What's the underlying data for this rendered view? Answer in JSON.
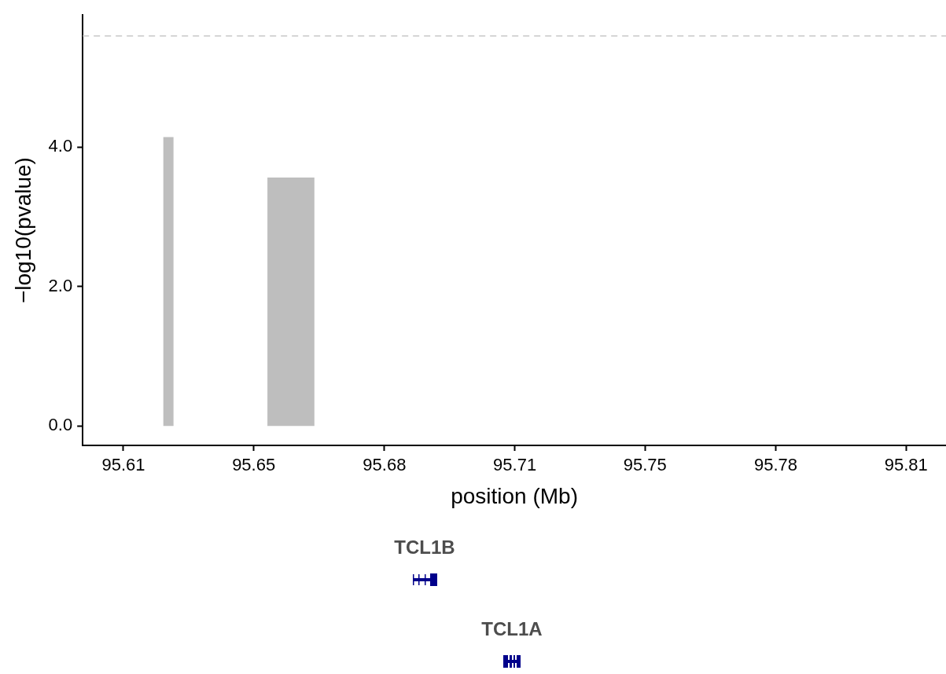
{
  "chart_data": {
    "type": "histogram",
    "xlabel": "position (Mb)",
    "ylabel": "−log10(pvalue)",
    "bins": [
      95.6222,
      95.6248,
      95.6488,
      95.6608
    ],
    "values": [
      4.14,
      0,
      3.56
    ],
    "color": "#bebebe",
    "xlim": [
      95.6016,
      95.8222
    ],
    "xticks": [
      {
        "value": 95.612,
        "label": "95.61"
      },
      {
        "value": 95.6453,
        "label": "95.65"
      },
      {
        "value": 95.6787,
        "label": "95.68"
      },
      {
        "value": 95.712,
        "label": "95.71"
      },
      {
        "value": 95.7453,
        "label": "95.75"
      },
      {
        "value": 95.7787,
        "label": "95.78"
      },
      {
        "value": 95.812,
        "label": "95.81"
      }
    ],
    "ylim": [
      -0.28,
      5.89
    ],
    "yticks": [
      {
        "value": 0,
        "label": "0.0"
      },
      {
        "value": 2,
        "label": "2.0"
      },
      {
        "value": 4,
        "label": "4.0"
      }
    ],
    "ref_lines": [
      {
        "axis": "y",
        "value": 5.59,
        "color": "#c8c8c8",
        "line_style": "dashed"
      }
    ],
    "annotations": [
      "TCL1B",
      "TCL1A"
    ],
    "grid": false,
    "legend": false
  }
}
